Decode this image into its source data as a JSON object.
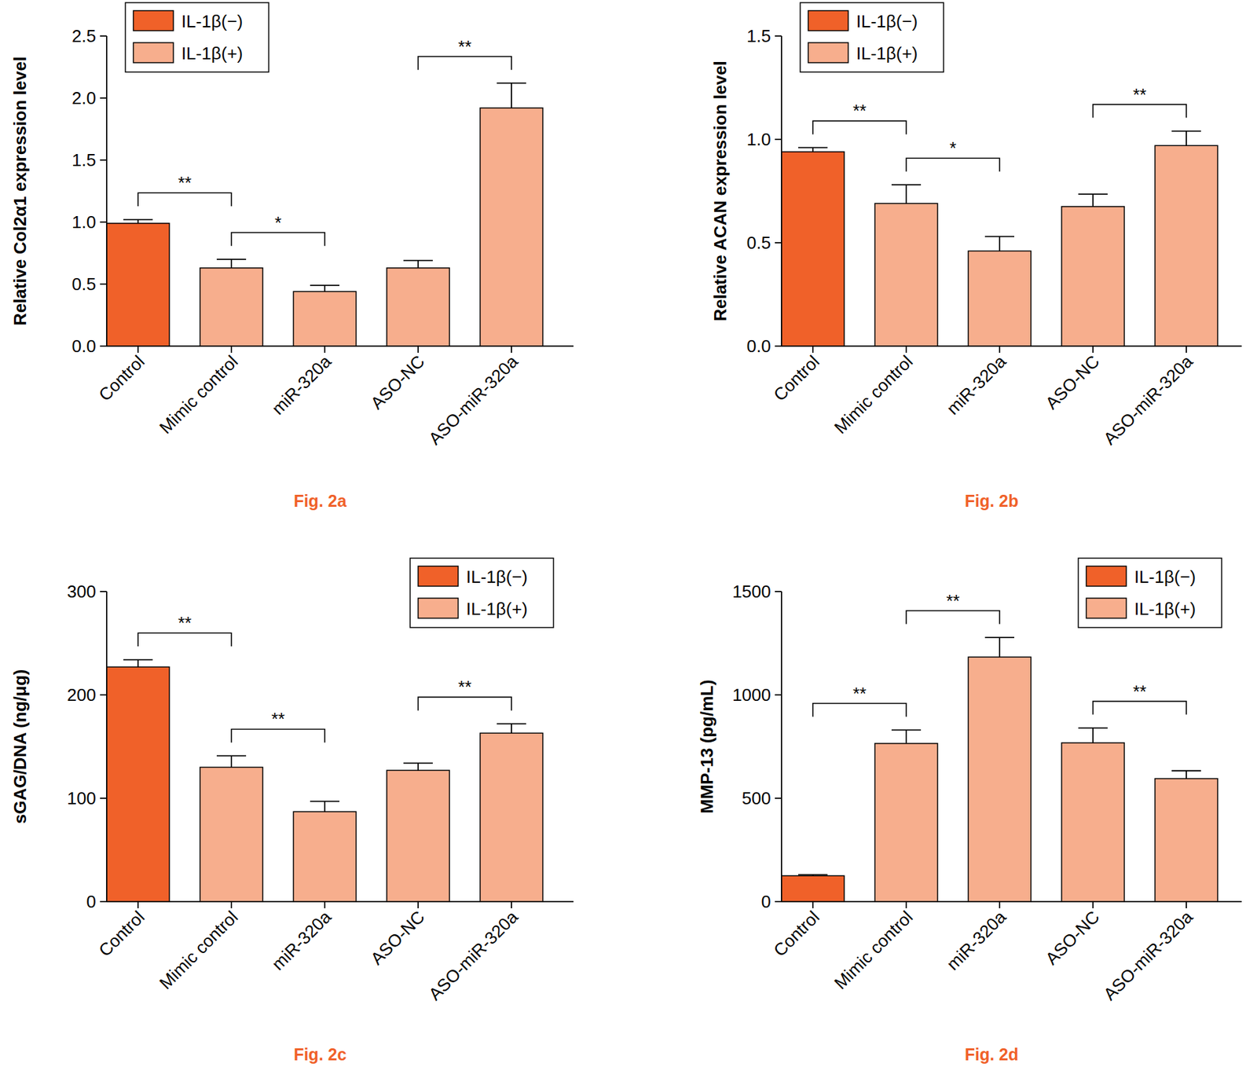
{
  "chart_data": [
    {
      "type": "bar",
      "title": "Fig. 2a",
      "y_label": "Relative Col2α1 expression level",
      "categories": [
        "Control",
        "Mimic control",
        "miR-320a",
        "ASO-NC",
        "ASO-miR-320a"
      ],
      "series": [
        {
          "name": "IL-1β(−)",
          "color": "#f06129",
          "values": [
            0.99,
            null,
            null,
            null,
            null
          ],
          "errors": [
            0.03,
            null,
            null,
            null,
            null
          ]
        },
        {
          "name": "IL-1β(+)",
          "color": "#f7ae8d",
          "values": [
            null,
            0.63,
            0.44,
            0.63,
            1.92
          ],
          "errors": [
            null,
            0.07,
            0.05,
            0.06,
            0.2
          ]
        }
      ],
      "ylim": [
        0,
        2.5
      ],
      "yticks": [
        {
          "value": 0,
          "label": "0.0"
        },
        {
          "value": 0.5,
          "label": "0.5"
        },
        {
          "value": 1,
          "label": "1.0"
        },
        {
          "value": 1.5,
          "label": "1.5"
        },
        {
          "value": 2,
          "label": "2.0"
        },
        {
          "value": 2.5,
          "label": "2.5"
        }
      ],
      "annotations": [
        {
          "from": 0,
          "to": 1,
          "label": "**"
        },
        {
          "from": 1,
          "to": 2,
          "label": "*"
        },
        {
          "from": 3,
          "to": 4,
          "label": "**"
        }
      ],
      "legend": "upper left",
      "grid": false
    },
    {
      "type": "bar",
      "title": "Fig. 2b",
      "y_label": "Relative ACAN expression level",
      "categories": [
        "Control",
        "Mimic control",
        "miR-320a",
        "ASO-NC",
        "ASO-miR-320a"
      ],
      "series": [
        {
          "name": "IL-1β(−)",
          "color": "#f06129",
          "values": [
            0.94,
            null,
            null,
            null,
            null
          ],
          "errors": [
            0.02,
            null,
            null,
            null,
            null
          ]
        },
        {
          "name": "IL-1β(+)",
          "color": "#f7ae8d",
          "values": [
            null,
            0.69,
            0.46,
            0.675,
            0.97
          ],
          "errors": [
            null,
            0.09,
            0.07,
            0.06,
            0.07
          ]
        }
      ],
      "ylim": [
        0,
        1.5
      ],
      "yticks": [
        {
          "value": 0,
          "label": "0.0"
        },
        {
          "value": 0.5,
          "label": "0.5"
        },
        {
          "value": 1,
          "label": "1.0"
        },
        {
          "value": 1.5,
          "label": "1.5"
        }
      ],
      "annotations": [
        {
          "from": 0,
          "to": 1,
          "label": "**"
        },
        {
          "from": 1,
          "to": 2,
          "label": "*"
        },
        {
          "from": 3,
          "to": 4,
          "label": "**"
        }
      ],
      "legend": "upper left",
      "grid": false
    },
    {
      "type": "bar",
      "title": "Fig. 2c",
      "y_label": "sGAG/DNA (ng/μg)",
      "categories": [
        "Control",
        "Mimic control",
        "miR-320a",
        "ASO-NC",
        "ASO-miR-320a"
      ],
      "series": [
        {
          "name": "IL-1β(−)",
          "color": "#f06129",
          "values": [
            227,
            null,
            null,
            null,
            null
          ],
          "errors": [
            7,
            null,
            null,
            null,
            null
          ]
        },
        {
          "name": "IL-1β(+)",
          "color": "#f7ae8d",
          "values": [
            null,
            130,
            87,
            127,
            163
          ],
          "errors": [
            null,
            11,
            10,
            7,
            9
          ]
        }
      ],
      "ylim": [
        0,
        300
      ],
      "yticks": [
        0,
        100,
        200,
        300
      ],
      "annotations": [
        {
          "from": 0,
          "to": 1,
          "label": "**"
        },
        {
          "from": 1,
          "to": 2,
          "label": "**"
        },
        {
          "from": 3,
          "to": 4,
          "label": "**"
        }
      ],
      "legend": "upper right",
      "grid": false
    },
    {
      "type": "bar",
      "title": "Fig. 2d",
      "y_label": "MMP-13 (pg/mL)",
      "categories": [
        "Control",
        "Mimic control",
        "miR-320a",
        "ASO-NC",
        "ASO-miR-320a"
      ],
      "series": [
        {
          "name": "IL-1β(−)",
          "color": "#f06129",
          "values": [
            125,
            null,
            null,
            null,
            null
          ],
          "errors": [
            5,
            null,
            null,
            null,
            null
          ]
        },
        {
          "name": "IL-1β(+)",
          "color": "#f7ae8d",
          "values": [
            null,
            765,
            1183,
            768,
            595
          ],
          "errors": [
            null,
            65,
            95,
            72,
            38
          ]
        }
      ],
      "ylim": [
        0,
        1500
      ],
      "yticks": [
        0,
        500,
        1000,
        1500
      ],
      "annotations": [
        {
          "from": 0,
          "to": 1,
          "label": "**"
        },
        {
          "from": 1,
          "to": 2,
          "label": "**"
        },
        {
          "from": 3,
          "to": 4,
          "label": "**"
        }
      ],
      "legend": "upper right",
      "grid": false
    }
  ]
}
